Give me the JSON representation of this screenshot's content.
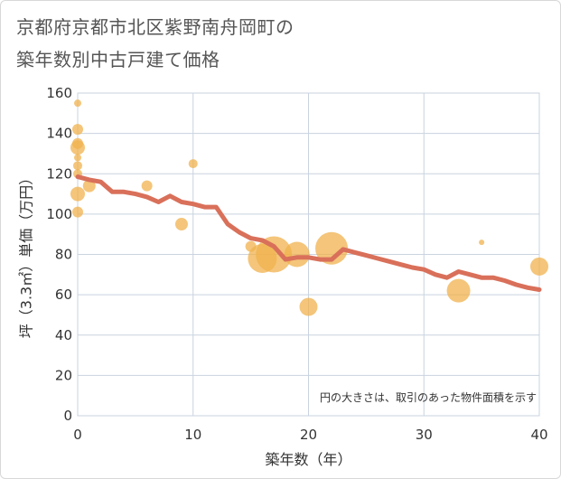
{
  "chart_data": {
    "type": "scatter",
    "title_line1": "京都府京都市北区紫野南舟岡町の",
    "title_line2": "築年数別中古戸建て価格",
    "xlabel": "築年数（年）",
    "ylabel": "坪（3.3㎡）単価（万円）",
    "xlim": [
      0,
      40
    ],
    "ylim": [
      0,
      160
    ],
    "x_ticks": [
      0,
      10,
      20,
      30,
      40
    ],
    "y_ticks": [
      0,
      20,
      40,
      60,
      80,
      100,
      120,
      140,
      160
    ],
    "note": "円の大きさは、取引のあった物件面積を示す",
    "grid": true,
    "colors": {
      "bubble": "#f0b24e",
      "trend": "#d9705a",
      "grid": "#c9d3df"
    },
    "bubbles": [
      {
        "x": 0,
        "y": 155,
        "size": 4
      },
      {
        "x": 0,
        "y": 142,
        "size": 6
      },
      {
        "x": 0,
        "y": 135,
        "size": 6
      },
      {
        "x": 0,
        "y": 133,
        "size": 8
      },
      {
        "x": 0,
        "y": 128,
        "size": 4
      },
      {
        "x": 0,
        "y": 124,
        "size": 5
      },
      {
        "x": 0,
        "y": 120,
        "size": 5
      },
      {
        "x": 0,
        "y": 110,
        "size": 8
      },
      {
        "x": 0,
        "y": 101,
        "size": 6
      },
      {
        "x": 1,
        "y": 114,
        "size": 7
      },
      {
        "x": 6,
        "y": 114,
        "size": 6
      },
      {
        "x": 9,
        "y": 95,
        "size": 7
      },
      {
        "x": 10,
        "y": 125,
        "size": 5
      },
      {
        "x": 15,
        "y": 84,
        "size": 6
      },
      {
        "x": 16,
        "y": 78,
        "size": 16
      },
      {
        "x": 17,
        "y": 80,
        "size": 20
      },
      {
        "x": 19,
        "y": 80,
        "size": 14
      },
      {
        "x": 20,
        "y": 54,
        "size": 10
      },
      {
        "x": 22,
        "y": 83,
        "size": 18
      },
      {
        "x": 33,
        "y": 62,
        "size": 13
      },
      {
        "x": 35,
        "y": 86,
        "size": 3
      },
      {
        "x": 40,
        "y": 74,
        "size": 10
      }
    ],
    "trend": {
      "x": [
        0,
        1,
        2,
        3,
        4,
        5,
        6,
        7,
        8,
        9,
        10,
        11,
        12,
        13,
        14,
        15,
        16,
        17,
        18,
        19,
        20,
        21,
        22,
        23,
        24,
        25,
        26,
        27,
        28,
        29,
        30,
        31,
        32,
        33,
        34,
        35,
        36,
        37,
        38,
        39,
        40
      ],
      "y": [
        118.5,
        117,
        116,
        111,
        111,
        110,
        108.5,
        106,
        109,
        106,
        105,
        103.5,
        103.5,
        95,
        91,
        88,
        87,
        84,
        77.5,
        78.5,
        78.5,
        77.5,
        77.5,
        82.5,
        81,
        79.5,
        78,
        76.5,
        75,
        73.5,
        72.5,
        70,
        68.5,
        71.5,
        70,
        68.5,
        68.5,
        67,
        65,
        63.5,
        62.5
      ]
    }
  }
}
